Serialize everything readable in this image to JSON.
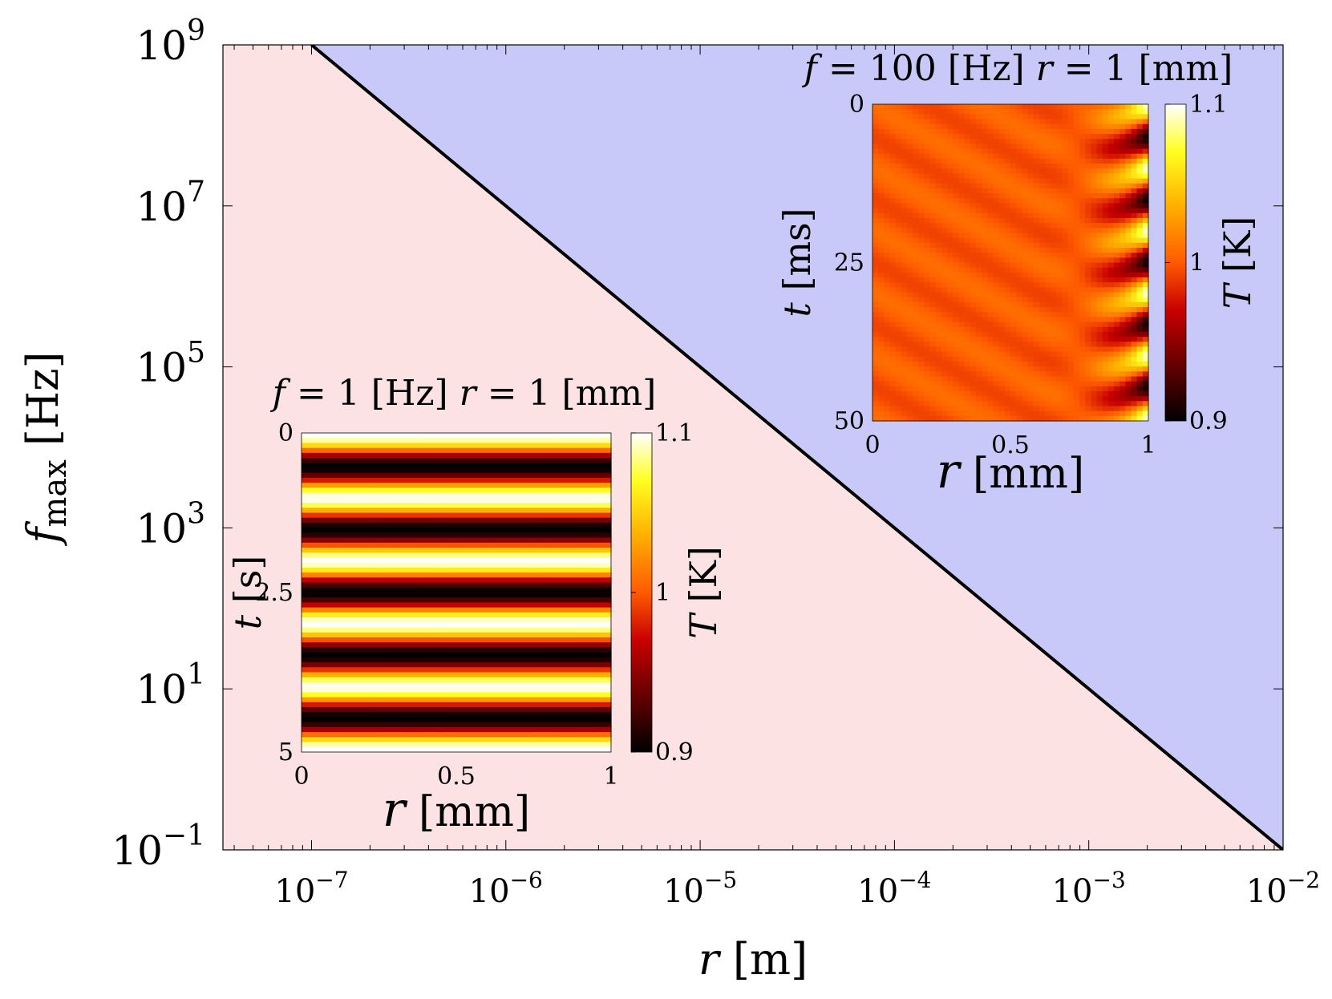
{
  "chart_data": {
    "type": "area",
    "xscale": "log",
    "yscale": "log",
    "xlim": [
      3.5e-08,
      0.01
    ],
    "ylim": [
      0.1,
      1000000000
    ],
    "xlabel": {
      "symbol": "r",
      "unit": "[m]"
    },
    "ylabel": {
      "symbol": "f",
      "subscript": "max",
      "unit": "[Hz]"
    },
    "xticks": [
      {
        "value": 1e-07,
        "base": "10",
        "exp": "−7"
      },
      {
        "value": 1e-06,
        "base": "10",
        "exp": "−6"
      },
      {
        "value": 1e-05,
        "base": "10",
        "exp": "−5"
      },
      {
        "value": 0.0001,
        "base": "10",
        "exp": "−4"
      },
      {
        "value": 0.001,
        "base": "10",
        "exp": "−3"
      },
      {
        "value": 0.01,
        "base": "10",
        "exp": "−2"
      }
    ],
    "yticks": [
      {
        "value": 0.1,
        "base": "10",
        "exp": "−1"
      },
      {
        "value": 10,
        "base": "10",
        "exp": "1"
      },
      {
        "value": 1000,
        "base": "10",
        "exp": "3"
      },
      {
        "value": 100000,
        "base": "10",
        "exp": "5"
      },
      {
        "value": 10000000,
        "base": "10",
        "exp": "7"
      },
      {
        "value": 1000000000,
        "base": "10",
        "exp": "9"
      }
    ],
    "boundary": {
      "x": [
        1e-07,
        0.01
      ],
      "y": [
        1000000000,
        0.1
      ],
      "color": "#000000"
    },
    "regions": {
      "below_color": "#fde2e4",
      "above_color": "#c9c9f9"
    },
    "insets": [
      {
        "title_f_symbol": "f",
        "title_f_value": "= 100",
        "title_f_unit": "[Hz]",
        "title_r_symbol": "r",
        "title_r_value": "= 1",
        "title_r_unit": "[mm]",
        "xlabel_symbol": "r",
        "xlabel_unit": "[mm]",
        "ylabel_symbol": "t",
        "ylabel_unit": "[ms]",
        "xticks": [
          "0",
          "0.5",
          "1"
        ],
        "yticks": [
          "0",
          "25",
          "50"
        ],
        "colorbar_label_symbol": "T",
        "colorbar_label_unit": "[K]",
        "colorbar_ticks": [
          "1.1",
          "1",
          "0.9"
        ],
        "clim": [
          0.9,
          1.1
        ],
        "pattern": "edge-waves"
      },
      {
        "title_f_symbol": "f",
        "title_f_value": "= 1",
        "title_f_unit": "[Hz]",
        "title_r_symbol": "r",
        "title_r_value": "= 1",
        "title_r_unit": "[mm]",
        "xlabel_symbol": "r",
        "xlabel_unit": "[mm]",
        "ylabel_symbol": "t",
        "ylabel_unit": "[s]",
        "xticks": [
          "0",
          "0.5",
          "1"
        ],
        "yticks": [
          "0",
          "2.5",
          "5"
        ],
        "colorbar_label_symbol": "T",
        "colorbar_label_unit": "[K]",
        "colorbar_ticks": [
          "1.1",
          "1",
          "0.9"
        ],
        "clim": [
          0.9,
          1.1
        ],
        "pattern": "uniform-bands"
      }
    ]
  }
}
